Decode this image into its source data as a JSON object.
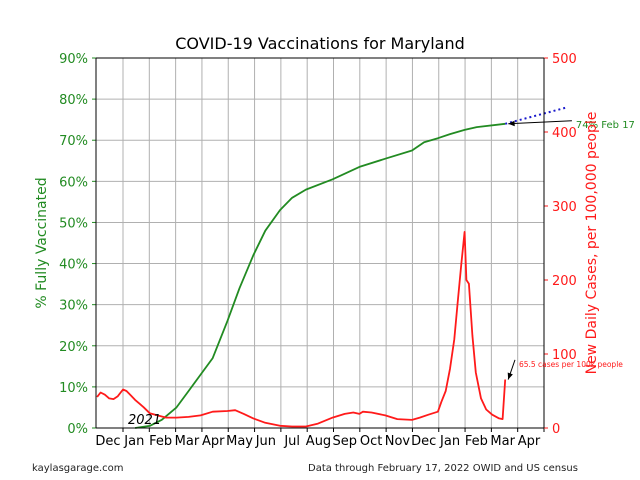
{
  "footer": {
    "source_site": "kaylasgarage.com",
    "data_note": "Data through February 17, 2022 OWID and US census"
  },
  "colors": {
    "vaccinated": "#228B22",
    "cases": "#ff1a1a",
    "projection": "#1a1acc",
    "grid": "#b0b0b0"
  },
  "chart_data": {
    "type": "line",
    "title": "COVID-19 Vaccinations for Maryland",
    "xlabel": "",
    "x_tick_labels": [
      "Dec",
      "Jan",
      "Feb",
      "Mar",
      "Apr",
      "May",
      "Jun",
      "Jul",
      "Aug",
      "Sep",
      "Oct",
      "Nov",
      "Dec",
      "Jan",
      "Feb",
      "Mar",
      "Apr"
    ],
    "x_year_annotation": "2021",
    "ylabel_left": "% Fully Vaccinated",
    "ylim_left": [
      0,
      90
    ],
    "y_ticks_left": [
      "0%",
      "10%",
      "20%",
      "30%",
      "40%",
      "50%",
      "60%",
      "70%",
      "80%",
      "90%"
    ],
    "ylabel_right": "New Daily Cases, per 100,000 people",
    "ylim_right": [
      0,
      500
    ],
    "y_ticks_right": [
      "0",
      "100",
      "200",
      "300",
      "400",
      "500"
    ],
    "grid": true,
    "series": [
      {
        "axis": "left",
        "style": "solid",
        "points": [
          [
            "2020-12-15",
            0
          ],
          [
            "2021-01-01",
            0.5
          ],
          [
            "2021-01-15",
            2
          ],
          [
            "2021-02-01",
            5
          ],
          [
            "2021-02-15",
            9
          ],
          [
            "2021-03-01",
            13
          ],
          [
            "2021-03-15",
            17
          ],
          [
            "2021-04-01",
            26
          ],
          [
            "2021-04-15",
            34
          ],
          [
            "2021-05-01",
            42
          ],
          [
            "2021-05-15",
            48
          ],
          [
            "2021-06-01",
            53
          ],
          [
            "2021-06-15",
            56
          ],
          [
            "2021-07-01",
            58
          ],
          [
            "2021-08-01",
            60.5
          ],
          [
            "2021-09-01",
            63.5
          ],
          [
            "2021-10-01",
            65.5
          ],
          [
            "2021-11-01",
            67.5
          ],
          [
            "2021-11-15",
            69.5
          ],
          [
            "2021-12-01",
            70.5
          ],
          [
            "2021-12-15",
            71.5
          ],
          [
            "2022-01-01",
            72.5
          ],
          [
            "2022-01-15",
            73.2
          ],
          [
            "2022-02-17",
            74
          ]
        ]
      },
      {
        "axis": "left",
        "style": "dotted",
        "points": [
          [
            "2022-02-17",
            74
          ],
          [
            "2022-04-30",
            78
          ]
        ]
      },
      {
        "axis": "right",
        "style": "solid",
        "points": [
          [
            "2020-11-01",
            42
          ],
          [
            "2020-11-05",
            48
          ],
          [
            "2020-11-10",
            45
          ],
          [
            "2020-11-15",
            40
          ],
          [
            "2020-11-20",
            39
          ],
          [
            "2020-11-25",
            43
          ],
          [
            "2020-12-01",
            52
          ],
          [
            "2020-12-05",
            50
          ],
          [
            "2020-12-10",
            44
          ],
          [
            "2020-12-15",
            38
          ],
          [
            "2020-12-20",
            33
          ],
          [
            "2020-12-25",
            28
          ],
          [
            "2021-01-01",
            20
          ],
          [
            "2021-01-10",
            17
          ],
          [
            "2021-01-20",
            14
          ],
          [
            "2021-02-01",
            14
          ],
          [
            "2021-02-15",
            15
          ],
          [
            "2021-03-01",
            17
          ],
          [
            "2021-03-15",
            22
          ],
          [
            "2021-04-01",
            23
          ],
          [
            "2021-04-10",
            24
          ],
          [
            "2021-04-20",
            19
          ],
          [
            "2021-05-01",
            13
          ],
          [
            "2021-05-15",
            7
          ],
          [
            "2021-06-01",
            3
          ],
          [
            "2021-06-15",
            2
          ],
          [
            "2021-07-01",
            2
          ],
          [
            "2021-07-15",
            6
          ],
          [
            "2021-08-01",
            14
          ],
          [
            "2021-08-15",
            19
          ],
          [
            "2021-08-25",
            21
          ],
          [
            "2021-09-01",
            19
          ],
          [
            "2021-09-05",
            22
          ],
          [
            "2021-09-15",
            21
          ],
          [
            "2021-10-01",
            17
          ],
          [
            "2021-10-15",
            12
          ],
          [
            "2021-11-01",
            11
          ],
          [
            "2021-11-10",
            14
          ],
          [
            "2021-11-20",
            18
          ],
          [
            "2021-12-01",
            22
          ],
          [
            "2021-12-05",
            35
          ],
          [
            "2021-12-10",
            50
          ],
          [
            "2021-12-15",
            80
          ],
          [
            "2021-12-20",
            120
          ],
          [
            "2021-12-24",
            170
          ],
          [
            "2021-12-28",
            220
          ],
          [
            "2022-01-01",
            265
          ],
          [
            "2022-01-03",
            200
          ],
          [
            "2022-01-06",
            195
          ],
          [
            "2022-01-10",
            125
          ],
          [
            "2022-01-14",
            75
          ],
          [
            "2022-01-20",
            40
          ],
          [
            "2022-01-26",
            25
          ],
          [
            "2022-02-02",
            18
          ],
          [
            "2022-02-10",
            13
          ],
          [
            "2022-02-14",
            12
          ],
          [
            "2022-02-17",
            65.5
          ]
        ]
      }
    ],
    "annotations": [
      {
        "text": "74% Feb 17",
        "axis": "left",
        "point": [
          "2022-02-17",
          74
        ],
        "text_anchor_at": [
          "2022-05-10",
          74
        ]
      },
      {
        "text": "65.5 cases per 100k people",
        "axis": "right",
        "point": [
          "2022-02-17",
          65.5
        ],
        "text_anchor_at": [
          "2022-03-05",
          88
        ]
      }
    ]
  }
}
